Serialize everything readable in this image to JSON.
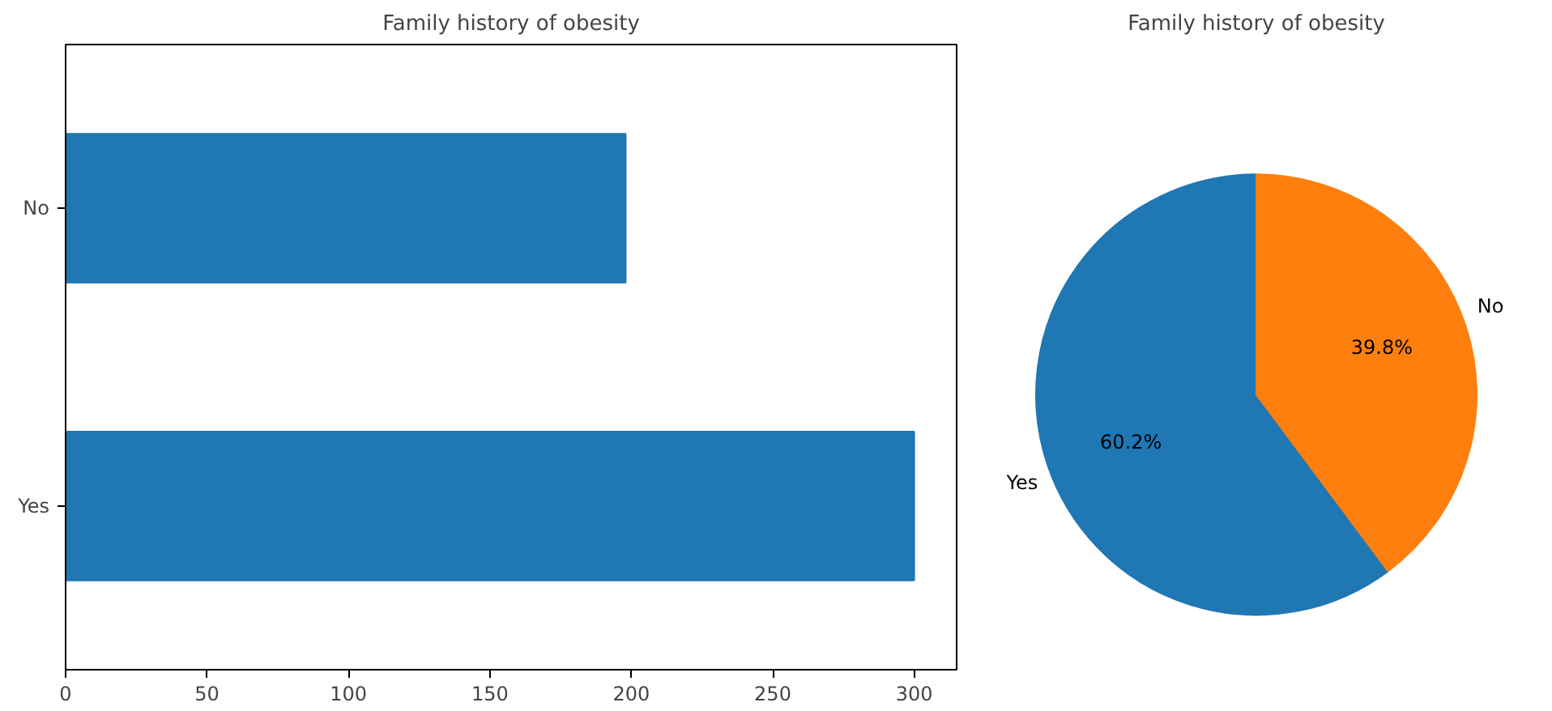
{
  "chart_data": [
    {
      "type": "bar",
      "orientation": "horizontal",
      "title": "Family history of obesity",
      "categories": [
        "No",
        "Yes"
      ],
      "values": [
        198,
        300
      ],
      "color": "#1f77b4",
      "xlim": [
        0,
        315
      ],
      "xticks": [
        0,
        50,
        100,
        150,
        200,
        250,
        300
      ],
      "grid": false
    },
    {
      "type": "pie",
      "title": "Family history of obesity",
      "categories": [
        "Yes",
        "No"
      ],
      "values": [
        60.2,
        39.8
      ],
      "colors": [
        "#1f77b4",
        "#ff7f0e"
      ],
      "value_labels": [
        "60.2%",
        "39.8%"
      ]
    }
  ]
}
